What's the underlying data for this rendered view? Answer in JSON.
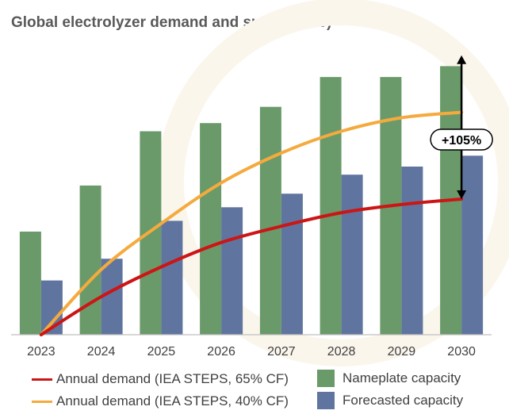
{
  "chart_data": {
    "type": "bar",
    "title": "Global electrolyzer demand and supply (GW)",
    "categories": [
      "2023",
      "2024",
      "2025",
      "2026",
      "2027",
      "2028",
      "2029",
      "2030"
    ],
    "ylim": [
      0,
      100
    ],
    "series": [
      {
        "name": "Nameplate capacity",
        "kind": "bar",
        "color": "#6a9a6a",
        "values": [
          38,
          55,
          75,
          78,
          84,
          95,
          95,
          99
        ]
      },
      {
        "name": "Forecasted capacity",
        "kind": "bar",
        "color": "#5f75a0",
        "values": [
          20,
          28,
          42,
          47,
          52,
          59,
          62,
          66
        ]
      },
      {
        "name": "Annual demand (IEA STEPS, 65% CF)",
        "kind": "line",
        "color": "#cc1515",
        "values": [
          0,
          14,
          25,
          34,
          40,
          45,
          48,
          50
        ]
      },
      {
        "name": "Annual demand (IEA STEPS, 40% CF)",
        "kind": "line",
        "color": "#f5aa3d",
        "values": [
          0,
          24,
          41,
          56,
          67,
          75,
          80,
          82
        ]
      }
    ],
    "annotation": {
      "label": "+105%",
      "category": "2030",
      "from_value": 50,
      "to_value": 103
    }
  }
}
